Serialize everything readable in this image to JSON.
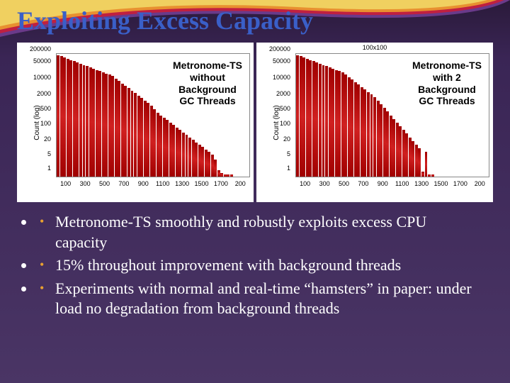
{
  "title": "Exploiting Excess Capacity",
  "swoosh_colors": [
    "#f0d060",
    "#e89030",
    "#c02040",
    "#6a3a8a"
  ],
  "charts": {
    "ylabel": "Count (log)",
    "yticks": [
      {
        "label": "200000",
        "pos": 0.98
      },
      {
        "label": "50000",
        "pos": 0.88
      },
      {
        "label": "10000",
        "pos": 0.75
      },
      {
        "label": "2000",
        "pos": 0.62
      },
      {
        "label": "500",
        "pos": 0.5
      },
      {
        "label": "100",
        "pos": 0.38
      },
      {
        "label": "20",
        "pos": 0.25
      },
      {
        "label": "5",
        "pos": 0.13
      },
      {
        "label": "1",
        "pos": 0.02
      }
    ],
    "left": {
      "caption": "Metronome-TS\nwithout\nBackground\nGC Threads",
      "xticks": [
        "100",
        "300",
        "500",
        "700",
        "900",
        "1100",
        "1300",
        "1500",
        "1700",
        "200"
      ],
      "bars": [
        0.99,
        0.98,
        0.97,
        0.96,
        0.95,
        0.94,
        0.93,
        0.92,
        0.91,
        0.9,
        0.89,
        0.88,
        0.87,
        0.86,
        0.85,
        0.84,
        0.83,
        0.82,
        0.8,
        0.78,
        0.76,
        0.74,
        0.72,
        0.7,
        0.68,
        0.66,
        0.64,
        0.62,
        0.6,
        0.58,
        0.55,
        0.52,
        0.5,
        0.48,
        0.46,
        0.44,
        0.42,
        0.4,
        0.38,
        0.36,
        0.34,
        0.32,
        0.3,
        0.28,
        0.26,
        0.24,
        0.22,
        0.2,
        0.18,
        0.14,
        0.05,
        0.03,
        0.02,
        0.02,
        0.02,
        0,
        0,
        0,
        0,
        0
      ],
      "bar_color": "#b01010"
    },
    "right": {
      "toptext": "100x100",
      "caption": "Metronome-TS\nwith 2\nBackground\nGC Threads",
      "xticks": [
        "100",
        "300",
        "500",
        "700",
        "900",
        "1100",
        "1300",
        "1500",
        "1700",
        "200"
      ],
      "bars": [
        0.99,
        0.98,
        0.97,
        0.96,
        0.95,
        0.94,
        0.93,
        0.92,
        0.91,
        0.9,
        0.89,
        0.88,
        0.87,
        0.86,
        0.85,
        0.83,
        0.81,
        0.79,
        0.77,
        0.75,
        0.73,
        0.71,
        0.69,
        0.67,
        0.65,
        0.62,
        0.59,
        0.56,
        0.53,
        0.5,
        0.47,
        0.44,
        0.41,
        0.38,
        0.35,
        0.32,
        0.29,
        0.26,
        0.23,
        0.04,
        0.2,
        0.02,
        0.02,
        0,
        0,
        0,
        0,
        0,
        0,
        0,
        0,
        0,
        0,
        0,
        0,
        0,
        0,
        0,
        0,
        0
      ],
      "bar_color": "#b01010"
    }
  },
  "bullets": [
    "Metronome-TS smoothly and robustly exploits excess CPU capacity",
    "15% throughout improvement with background threads",
    "Experiments with normal and real-time “hamsters” in paper: under load no degradation from background threads"
  ],
  "bullet_marker_color": "#e8a030"
}
